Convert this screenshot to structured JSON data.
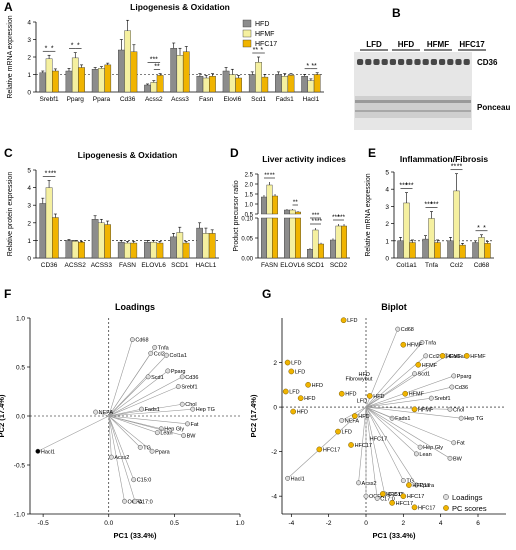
{
  "panels": {
    "A": "A",
    "B": "B",
    "C": "C",
    "D": "D",
    "E": "E",
    "F": "F",
    "G": "G"
  },
  "colors": {
    "HFD": "#8c8c8c",
    "HFMF": "#f5f0a0",
    "HFC17": "#f0b400",
    "point": "#f0b400"
  },
  "chart_data": [
    {
      "id": "A",
      "type": "bar",
      "title": "Lipogenesis & Oxidation",
      "ylabel": "Relative mRNA expression",
      "ylim": [
        0,
        4
      ],
      "yticks": [
        0,
        1,
        2,
        3,
        4
      ],
      "categories": [
        "Srebf1",
        "Pparg",
        "Ppara",
        "Cd36",
        "Acss2",
        "Acss3",
        "Fasn",
        "Elovl6",
        "Scd1",
        "Fads1",
        "Hacl1"
      ],
      "series": [
        {
          "name": "HFD",
          "values": [
            1.1,
            1.2,
            1.3,
            2.4,
            0.4,
            2.5,
            0.9,
            1.2,
            1.0,
            1.0,
            0.9
          ]
        },
        {
          "name": "HFMF",
          "values": [
            1.9,
            1.95,
            1.35,
            3.5,
            0.55,
            2.1,
            0.8,
            1.0,
            1.7,
            0.9,
            0.65
          ]
        },
        {
          "name": "HFC17",
          "values": [
            1.2,
            1.4,
            1.55,
            2.3,
            0.95,
            2.3,
            0.9,
            0.8,
            0.85,
            0.95,
            1.0
          ]
        }
      ],
      "errors": [
        [
          0.1,
          0.15,
          0.1,
          0.6,
          0.06,
          0.3,
          0.15,
          0.2,
          0.15,
          0.15,
          0.1
        ],
        [
          0.2,
          0.3,
          0.1,
          0.6,
          0.1,
          0.4,
          0.15,
          0.3,
          0.3,
          0.15,
          0.1
        ],
        [
          0.12,
          0.15,
          0.1,
          0.4,
          0.1,
          0.3,
          0.15,
          0.15,
          0.15,
          0.1,
          0.1
        ]
      ],
      "significance": [
        {
          "label": "*",
          "a": 0,
          "sa": 0,
          "sb": 1
        },
        {
          "label": "*",
          "a": 0,
          "sa": 1,
          "sb": 2
        },
        {
          "label": "*",
          "a": 1,
          "sa": 0,
          "sb": 1
        },
        {
          "label": "*",
          "a": 1,
          "sa": 1,
          "sb": 2
        },
        {
          "label": "***",
          "a": 4,
          "sa": 0,
          "sb": 2
        },
        {
          "label": "**",
          "a": 4,
          "sa": 1,
          "sb": 2
        },
        {
          "label": "**",
          "a": 8,
          "sa": 0,
          "sb": 1
        },
        {
          "label": "*",
          "a": 8,
          "sa": 1,
          "sb": 2
        },
        {
          "label": "*",
          "a": 10,
          "sa": 0,
          "sb": 1
        },
        {
          "label": "**",
          "a": 10,
          "sa": 1,
          "sb": 2
        }
      ],
      "legend": [
        "HFD",
        "HFMF",
        "HFC17"
      ]
    },
    {
      "id": "C",
      "type": "bar",
      "title": "Lipogenesis & Oxidation",
      "ylabel": "Relative protein expression",
      "ylim": [
        0,
        5
      ],
      "yticks": [
        0,
        1,
        2,
        3,
        4,
        5
      ],
      "categories": [
        "CD36",
        "ACSS2",
        "ACSS3",
        "FASN",
        "ELOVL6",
        "SCD1",
        "HACL1"
      ],
      "series": [
        {
          "name": "HFD",
          "values": [
            3.1,
            1.0,
            2.2,
            0.9,
            0.9,
            1.2,
            1.7
          ]
        },
        {
          "name": "HFMF",
          "values": [
            4.0,
            0.95,
            2.0,
            0.85,
            0.9,
            1.45,
            1.4
          ]
        },
        {
          "name": "HFC17",
          "values": [
            2.3,
            0.9,
            1.9,
            0.85,
            0.85,
            0.85,
            1.4
          ]
        }
      ],
      "errors": [
        [
          0.3,
          0.05,
          0.2,
          0.1,
          0.1,
          0.2,
          0.3
        ],
        [
          0.4,
          0.05,
          0.2,
          0.1,
          0.1,
          0.3,
          0.3
        ],
        [
          0.2,
          0.05,
          0.2,
          0.1,
          0.1,
          0.1,
          0.2
        ]
      ],
      "significance": [
        {
          "label": "*",
          "a": 0,
          "sa": 0,
          "sb": 1
        },
        {
          "label": "***",
          "a": 0,
          "sa": 1,
          "sb": 2
        }
      ]
    },
    {
      "id": "D",
      "type": "bar",
      "title": "Liver activity indices",
      "ylabel": "Product precursor ratio",
      "broken": true,
      "ylim_low": [
        0,
        0.1
      ],
      "ylim_high": [
        0.5,
        2.5
      ],
      "yticks_low": [
        "0.00",
        "0.05",
        "0.10"
      ],
      "yticks_high": [
        "0.5",
        "1.0",
        "1.5",
        "2.0",
        "2.5"
      ],
      "categories": [
        "FASN",
        "ELOVL6",
        "SCD1",
        "SCD2"
      ],
      "series": [
        {
          "name": "HFD",
          "values": [
            1.35,
            0.7,
            0.022,
            0.045
          ]
        },
        {
          "name": "HFMF",
          "values": [
            1.95,
            0.7,
            0.07,
            0.08
          ]
        },
        {
          "name": "HFC17",
          "values": [
            1.4,
            0.6,
            0.035,
            0.08
          ]
        }
      ],
      "errors": [
        [
          0.1,
          0.05,
          0.003,
          0.004
        ],
        [
          0.15,
          0.05,
          0.005,
          0.005
        ],
        [
          0.1,
          0.05,
          0.003,
          0.005
        ]
      ],
      "significance": [
        {
          "label": "**",
          "a": 0,
          "sa": 0,
          "sb": 1
        },
        {
          "label": "**",
          "a": 0,
          "sa": 1,
          "sb": 2
        },
        {
          "label": "**",
          "a": 1,
          "sa": 1,
          "sb": 2
        },
        {
          "label": "*",
          "a": 2,
          "sa": 0,
          "sb": 1
        },
        {
          "label": "***",
          "a": 2,
          "sa": 0,
          "sb": 2
        },
        {
          "label": "***",
          "a": 2,
          "sa": 1,
          "sb": 2
        },
        {
          "label": "***",
          "a": 3,
          "sa": 0,
          "sb": 1
        },
        {
          "label": "***",
          "a": 3,
          "sa": 1,
          "sb": 2
        }
      ]
    },
    {
      "id": "E",
      "type": "bar",
      "title": "Inflammation/Fibrosis",
      "ylabel": "Relative mRNA expression",
      "ylim": [
        0,
        5
      ],
      "yticks": [
        0,
        1,
        2,
        3,
        4,
        5
      ],
      "categories": [
        "Col1a1",
        "Tnfa",
        "Ccl2",
        "Cd68"
      ],
      "series": [
        {
          "name": "HFD",
          "values": [
            1.0,
            1.1,
            1.0,
            0.9
          ]
        },
        {
          "name": "HFMF",
          "values": [
            3.2,
            2.3,
            3.9,
            1.2
          ]
        },
        {
          "name": "HFC17",
          "values": [
            0.9,
            0.9,
            0.75,
            0.85
          ]
        }
      ],
      "errors": [
        [
          0.2,
          0.2,
          0.2,
          0.1
        ],
        [
          0.6,
          0.4,
          1.0,
          0.15
        ],
        [
          0.15,
          0.15,
          0.1,
          0.1
        ]
      ],
      "significance": [
        {
          "label": "***",
          "a": 0,
          "sa": 0,
          "sb": 1
        },
        {
          "label": "***",
          "a": 0,
          "sa": 1,
          "sb": 2
        },
        {
          "label": "***",
          "a": 1,
          "sa": 0,
          "sb": 1
        },
        {
          "label": "***",
          "a": 1,
          "sa": 1,
          "sb": 2
        },
        {
          "label": "**",
          "a": 2,
          "sa": 0,
          "sb": 1
        },
        {
          "label": "**",
          "a": 2,
          "sa": 1,
          "sb": 2
        },
        {
          "label": "*",
          "a": 3,
          "sa": 0,
          "sb": 1
        },
        {
          "label": "*",
          "a": 3,
          "sa": 1,
          "sb": 2
        }
      ]
    },
    {
      "id": "F",
      "type": "scatter",
      "title": "Loadings",
      "xlabel": "PC1 (33.4%)",
      "ylabel": "PC2 (17.4%)",
      "xlim": [
        -0.6,
        1.0
      ],
      "ylim": [
        -1.0,
        1.0
      ],
      "xticks": [
        "-0.5",
        "0.0",
        "0.5",
        "1.0"
      ],
      "yticks": [
        "-1.0",
        "-0.5",
        "0.0",
        "0.5",
        "1.0"
      ],
      "points": [
        {
          "label": "Cd68",
          "x": 0.18,
          "y": 0.78
        },
        {
          "label": "Tnfa",
          "x": 0.35,
          "y": 0.7
        },
        {
          "label": "Ccl2",
          "x": 0.32,
          "y": 0.64
        },
        {
          "label": "Col1a1",
          "x": 0.44,
          "y": 0.62
        },
        {
          "label": "Pparg",
          "x": 0.45,
          "y": 0.46
        },
        {
          "label": "Scd1",
          "x": 0.3,
          "y": 0.4
        },
        {
          "label": "Cd36",
          "x": 0.56,
          "y": 0.4
        },
        {
          "label": "Srebf1",
          "x": 0.53,
          "y": 0.3
        },
        {
          "label": "Chol",
          "x": 0.56,
          "y": 0.12
        },
        {
          "label": "Hep TG",
          "x": 0.64,
          "y": 0.07
        },
        {
          "label": "Fads1",
          "x": 0.25,
          "y": 0.07
        },
        {
          "label": "NEFA",
          "x": -0.1,
          "y": 0.04
        },
        {
          "label": "Fat",
          "x": 0.6,
          "y": -0.08
        },
        {
          "label": "Hep Gly",
          "x": 0.4,
          "y": -0.13
        },
        {
          "label": "Lean",
          "x": 0.37,
          "y": -0.17
        },
        {
          "label": "BW",
          "x": 0.57,
          "y": -0.2
        },
        {
          "label": "TG",
          "x": 0.24,
          "y": -0.32
        },
        {
          "label": "Ppara",
          "x": 0.33,
          "y": -0.36
        },
        {
          "label": "Acss2",
          "x": 0.02,
          "y": -0.42
        },
        {
          "label": "Hacl1",
          "x": -0.54,
          "y": -0.36
        },
        {
          "label": "C15:0",
          "x": 0.19,
          "y": -0.65
        },
        {
          "label": "OCFA",
          "x": 0.12,
          "y": -0.87
        },
        {
          "label": "C17:0",
          "x": 0.2,
          "y": -0.87
        }
      ]
    },
    {
      "id": "G",
      "type": "scatter",
      "title": "Biplot",
      "xlabel": "PC1 (33.4%)",
      "ylabel": "PC2 (17.4%)",
      "xlim": [
        -4.5,
        7.5
      ],
      "ylim": [
        -4.8,
        4.0
      ],
      "xticks": [
        "-4",
        "-2",
        "0",
        "2",
        "4",
        "6"
      ],
      "yticks": [
        "-4",
        "-2",
        "0",
        "2"
      ],
      "legend": [
        "Loadings",
        "PC scores"
      ],
      "loadings": [
        {
          "label": "Cd68",
          "x": 1.7,
          "y": 3.5
        },
        {
          "label": "Tnfa",
          "x": 3.0,
          "y": 2.9
        },
        {
          "label": "Ccl2",
          "x": 3.2,
          "y": 2.3
        },
        {
          "label": "Col1a1",
          "x": 4.3,
          "y": 2.3
        },
        {
          "label": "Pparg",
          "x": 4.7,
          "y": 1.4
        },
        {
          "label": "Scd1",
          "x": 2.6,
          "y": 1.5
        },
        {
          "label": "Cd36",
          "x": 4.6,
          "y": 0.9
        },
        {
          "label": "Srebf1",
          "x": 3.5,
          "y": 0.4
        },
        {
          "label": "Chol",
          "x": 4.5,
          "y": -0.1
        },
        {
          "label": "Hep TG",
          "x": 5.1,
          "y": -0.5
        },
        {
          "label": "Fads1",
          "x": 1.4,
          "y": -0.5
        },
        {
          "label": "NEFA",
          "x": -1.3,
          "y": -0.6
        },
        {
          "label": "Fat",
          "x": 4.7,
          "y": -1.6
        },
        {
          "label": "Hep Gly",
          "x": 2.9,
          "y": -1.8
        },
        {
          "label": "Lean",
          "x": 2.7,
          "y": -2.1
        },
        {
          "label": "BW",
          "x": 4.5,
          "y": -2.3
        },
        {
          "label": "TG",
          "x": 2.0,
          "y": -3.3
        },
        {
          "label": "Ppara",
          "x": 2.7,
          "y": -3.5
        },
        {
          "label": "Acss2",
          "x": -0.4,
          "y": -3.4
        },
        {
          "label": "Hacl1",
          "x": -4.2,
          "y": -3.2
        },
        {
          "label": "C15:0",
          "x": 1.0,
          "y": -3.9
        },
        {
          "label": "OCFA",
          "x": 0.0,
          "y": -4.0
        },
        {
          "label": "C17:0",
          "x": 0.6,
          "y": -4.1
        }
      ],
      "scores": [
        {
          "label": "LFD",
          "x": -1.2,
          "y": 3.9
        },
        {
          "label": "LFD",
          "x": -4.2,
          "y": 2.0
        },
        {
          "label": "LFD",
          "x": -4.0,
          "y": 1.6
        },
        {
          "label": "LFD",
          "x": -4.3,
          "y": 0.7
        },
        {
          "label": "HFD",
          "x": -3.9,
          "y": -0.2
        },
        {
          "label": "HFD",
          "x": -3.5,
          "y": 0.4
        },
        {
          "label": "HFD",
          "x": -3.1,
          "y": 1.0
        },
        {
          "label": "HFD",
          "x": -1.3,
          "y": 0.6
        },
        {
          "label": "LFD",
          "x": -1.5,
          "y": -1.1
        },
        {
          "label": "HFD",
          "x": 0.2,
          "y": 0.5
        },
        {
          "label": "HFD",
          "x": -0.6,
          "y": -0.4
        },
        {
          "label": "HFC17",
          "x": -2.5,
          "y": -1.9
        },
        {
          "label": "HFC17",
          "x": -0.8,
          "y": -1.7
        },
        {
          "label": "HFMF",
          "x": 2.0,
          "y": 2.8
        },
        {
          "label": "HFMF",
          "x": 4.1,
          "y": 2.3
        },
        {
          "label": "HFMF",
          "x": 5.4,
          "y": 2.3
        },
        {
          "label": "HFMF",
          "x": 2.8,
          "y": 1.9
        },
        {
          "label": "HFMF",
          "x": 2.1,
          "y": 0.6
        },
        {
          "label": "HFMF",
          "x": 2.6,
          "y": -0.1
        },
        {
          "label": "HFC17",
          "x": 2.3,
          "y": -3.5
        },
        {
          "label": "HFC17",
          "x": 0.9,
          "y": -3.9
        },
        {
          "label": "HFC17",
          "x": 2.0,
          "y": -4.0
        },
        {
          "label": "HFC17",
          "x": 2.6,
          "y": -4.5
        },
        {
          "label": "HFC17",
          "x": 1.4,
          "y": -4.3
        }
      ],
      "extra_labels": [
        "Fibrowybut",
        "HFD",
        "HFC17",
        "LFD"
      ]
    }
  ],
  "blot": {
    "lanes": [
      "LFD",
      "HFD",
      "HFMF",
      "HFC17"
    ],
    "band_labels": [
      "CD36",
      "Ponceau"
    ]
  }
}
